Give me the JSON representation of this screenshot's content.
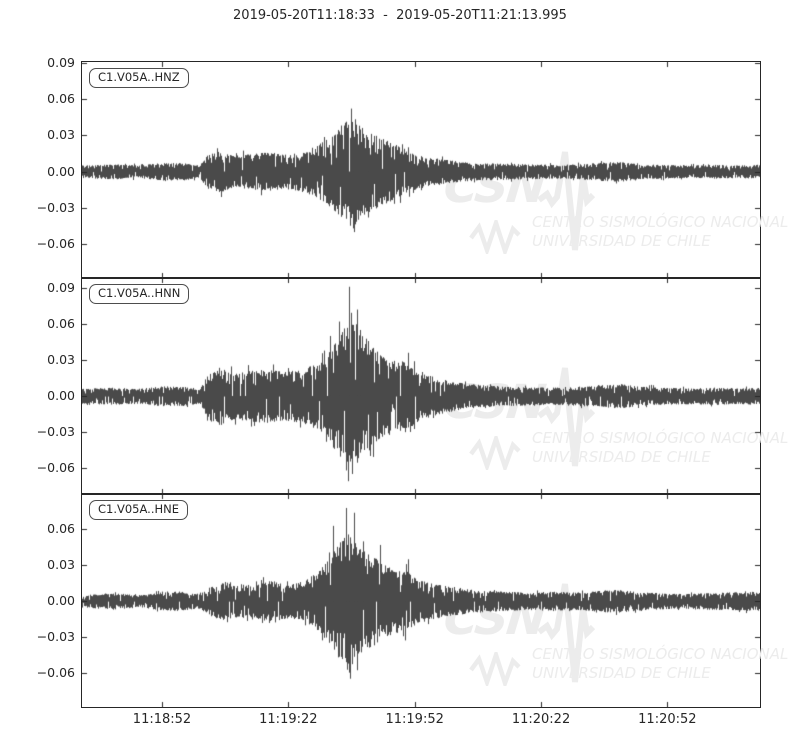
{
  "title": "2019-05-20T11:18:33  -  2019-05-20T11:21:13.995",
  "colors": {
    "background": "#ffffff",
    "waveform": "#4a4a4a",
    "axis": "#262626",
    "tick_label": "#262626",
    "channel_box_border": "#4d4d4d",
    "watermark": "#ececec"
  },
  "watermark": {
    "acronym": "CSN",
    "line1": "CENTRO SISMOLÓGICO NACIONAL",
    "line2": "UNIVERSIDAD DE CHILE",
    "logo_icon": "seismic-zigzag-icon"
  },
  "chart_data": {
    "type": "line",
    "kind": "three-component seismogram (waveform envelope data, amplitude vs time)",
    "title": "2019-05-20T11:18:33  -  2019-05-20T11:21:13.995",
    "time_start": "2019-05-20T11:18:33",
    "time_end": "2019-05-20T11:21:13.995",
    "duration_seconds": 160.995,
    "grid": false,
    "x_ticks": [
      {
        "t": 19,
        "label": "11:18:52"
      },
      {
        "t": 49,
        "label": "11:19:22"
      },
      {
        "t": 79,
        "label": "11:19:52"
      },
      {
        "t": 109,
        "label": "11:20:22"
      },
      {
        "t": 139,
        "label": "11:20:52"
      }
    ],
    "subplots": [
      {
        "id": "HNZ",
        "label": "C1.V05A..HNZ",
        "ylim": [
          -0.088,
          0.0905
        ],
        "yticks": [
          0.09,
          0.06,
          0.03,
          0.0,
          -0.03,
          -0.06
        ],
        "ytick_labels": [
          "0.09",
          "0.06",
          "0.03",
          "0.00",
          "−0.03",
          "−0.06"
        ],
        "peak_amplitude": 0.052,
        "min_amplitude": -0.047,
        "seed": 1101,
        "envelope": [
          [
            0,
            0.005
          ],
          [
            8,
            0.006
          ],
          [
            14,
            0.005
          ],
          [
            18,
            0.007
          ],
          [
            24,
            0.007
          ],
          [
            28,
            0.005
          ],
          [
            30,
            0.014
          ],
          [
            33,
            0.017
          ],
          [
            36,
            0.013
          ],
          [
            40,
            0.015
          ],
          [
            44,
            0.016
          ],
          [
            48,
            0.014
          ],
          [
            52,
            0.016
          ],
          [
            55,
            0.02
          ],
          [
            58,
            0.026
          ],
          [
            60,
            0.032
          ],
          [
            62,
            0.04
          ],
          [
            64,
            0.046
          ],
          [
            66,
            0.04
          ],
          [
            68,
            0.034
          ],
          [
            70,
            0.03
          ],
          [
            73,
            0.025
          ],
          [
            76,
            0.02
          ],
          [
            79,
            0.015
          ],
          [
            82,
            0.012
          ],
          [
            86,
            0.01
          ],
          [
            90,
            0.008
          ],
          [
            95,
            0.007
          ],
          [
            100,
            0.0065
          ],
          [
            106,
            0.006
          ],
          [
            112,
            0.0055
          ],
          [
            118,
            0.006
          ],
          [
            124,
            0.0075
          ],
          [
            128,
            0.008
          ],
          [
            132,
            0.006
          ],
          [
            138,
            0.0055
          ],
          [
            144,
            0.005
          ],
          [
            150,
            0.0055
          ],
          [
            156,
            0.005
          ],
          [
            161,
            0.0055
          ]
        ],
        "spikes": [
          [
            61.5,
            0.038
          ],
          [
            63.8,
            0.052
          ],
          [
            64.3,
            -0.047
          ],
          [
            66.5,
            0.036
          ],
          [
            67.8,
            -0.038
          ],
          [
            77.5,
            0.02
          ],
          [
            77.7,
            -0.02
          ]
        ]
      },
      {
        "id": "HNN",
        "label": "C1.V05A..HNN",
        "ylim": [
          -0.0817,
          0.0983
        ],
        "yticks": [
          0.09,
          0.06,
          0.03,
          0.0,
          -0.03,
          -0.06
        ],
        "ytick_labels": [
          "0.09",
          "0.06",
          "0.03",
          "0.00",
          "−0.03",
          "−0.06"
        ],
        "peak_amplitude": 0.091,
        "min_amplitude": -0.065,
        "seed": 2202,
        "envelope": [
          [
            0,
            0.006
          ],
          [
            8,
            0.007
          ],
          [
            14,
            0.006
          ],
          [
            18,
            0.008
          ],
          [
            24,
            0.008
          ],
          [
            28,
            0.006
          ],
          [
            30,
            0.02
          ],
          [
            33,
            0.024
          ],
          [
            36,
            0.019
          ],
          [
            40,
            0.021
          ],
          [
            44,
            0.022
          ],
          [
            48,
            0.02
          ],
          [
            52,
            0.022
          ],
          [
            55,
            0.026
          ],
          [
            58,
            0.034
          ],
          [
            60,
            0.044
          ],
          [
            62,
            0.056
          ],
          [
            63.5,
            0.068
          ],
          [
            65,
            0.058
          ],
          [
            67,
            0.05
          ],
          [
            69,
            0.042
          ],
          [
            71,
            0.036
          ],
          [
            73,
            0.032
          ],
          [
            75,
            0.028
          ],
          [
            77,
            0.03
          ],
          [
            79,
            0.024
          ],
          [
            82,
            0.018
          ],
          [
            86,
            0.014
          ],
          [
            90,
            0.011
          ],
          [
            95,
            0.009
          ],
          [
            100,
            0.008
          ],
          [
            106,
            0.0075
          ],
          [
            112,
            0.007
          ],
          [
            118,
            0.008
          ],
          [
            124,
            0.009
          ],
          [
            128,
            0.01
          ],
          [
            132,
            0.008
          ],
          [
            138,
            0.007
          ],
          [
            144,
            0.0065
          ],
          [
            150,
            0.007
          ],
          [
            156,
            0.0065
          ],
          [
            161,
            0.007
          ]
        ],
        "spikes": [
          [
            59,
            0.05
          ],
          [
            61,
            0.062
          ],
          [
            63.5,
            0.091
          ],
          [
            64.2,
            -0.065
          ],
          [
            65.4,
            0.072
          ],
          [
            66,
            0.055
          ],
          [
            68.5,
            -0.05
          ],
          [
            77.5,
            0.036
          ],
          [
            78,
            -0.03
          ]
        ]
      },
      {
        "id": "HNE",
        "label": "C1.V05A..HNE",
        "ylim": [
          -0.0888,
          0.0897
        ],
        "yticks": [
          0.06,
          0.03,
          0.0,
          -0.03,
          -0.06
        ],
        "ytick_labels": [
          "0.06",
          "0.03",
          "0.00",
          "−0.03",
          "−0.06"
        ],
        "peak_amplitude": 0.078,
        "min_amplitude": -0.062,
        "seed": 3303,
        "envelope": [
          [
            0,
            0.005
          ],
          [
            8,
            0.0065
          ],
          [
            14,
            0.005
          ],
          [
            18,
            0.007
          ],
          [
            23,
            0.008
          ],
          [
            28,
            0.006
          ],
          [
            31,
            0.013
          ],
          [
            34,
            0.016
          ],
          [
            37,
            0.013
          ],
          [
            41,
            0.015
          ],
          [
            45,
            0.017
          ],
          [
            49,
            0.014
          ],
          [
            52,
            0.016
          ],
          [
            55,
            0.022
          ],
          [
            57,
            0.028
          ],
          [
            59,
            0.036
          ],
          [
            61,
            0.048
          ],
          [
            63,
            0.058
          ],
          [
            64.5,
            0.052
          ],
          [
            66,
            0.046
          ],
          [
            68,
            0.04
          ],
          [
            70,
            0.036
          ],
          [
            72,
            0.03
          ],
          [
            74,
            0.027
          ],
          [
            76,
            0.026
          ],
          [
            78,
            0.024
          ],
          [
            80,
            0.018
          ],
          [
            83,
            0.015
          ],
          [
            86,
            0.013
          ],
          [
            90,
            0.011
          ],
          [
            95,
            0.009
          ],
          [
            100,
            0.008
          ],
          [
            106,
            0.007
          ],
          [
            112,
            0.008
          ],
          [
            118,
            0.007
          ],
          [
            124,
            0.009
          ],
          [
            128,
            0.0095
          ],
          [
            132,
            0.0075
          ],
          [
            138,
            0.0065
          ],
          [
            144,
            0.006
          ],
          [
            150,
            0.007
          ],
          [
            156,
            0.0075
          ],
          [
            161,
            0.008
          ]
        ],
        "spikes": [
          [
            59.5,
            0.063
          ],
          [
            62.8,
            0.078
          ],
          [
            63.5,
            -0.06
          ],
          [
            64.5,
            0.074
          ],
          [
            65.2,
            -0.058
          ],
          [
            66.8,
            0.05
          ],
          [
            70.8,
            0.047
          ],
          [
            76.8,
            -0.033
          ],
          [
            77.4,
            0.035
          ]
        ]
      }
    ]
  }
}
